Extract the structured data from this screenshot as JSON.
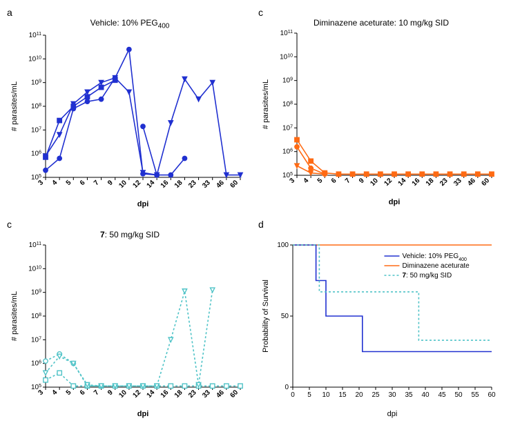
{
  "background_color": "#ffffff",
  "panels": {
    "a": {
      "label": "a",
      "title_prefix": "Vehicle: 10% PEG",
      "title_sub": "400",
      "type": "line",
      "color": "#2030d0",
      "fill_markers": true,
      "dash": "none",
      "y_mode": "log",
      "y_label": "# parasites/mL",
      "x_label": "dpi",
      "x_ticks": [
        "3",
        "4",
        "5",
        "6",
        "7",
        "9",
        "10",
        "12",
        "14",
        "16",
        "18",
        "23",
        "33",
        "46",
        "60"
      ],
      "x_bold": true,
      "y_ticks_exp": [
        5,
        6,
        7,
        8,
        9,
        10,
        11
      ],
      "h_ref_exp": 5,
      "series": [
        {
          "marker": "circle",
          "points": [
            [
              0,
              5.3
            ],
            [
              1,
              5.8
            ],
            [
              2,
              7.9
            ],
            [
              3,
              8.2
            ],
            [
              4,
              8.3
            ],
            [
              5,
              9.2
            ],
            [
              6,
              10.4
            ],
            [
              7,
              5.15
            ],
            [
              8,
              5.1
            ]
          ]
        },
        {
          "marker": "square",
          "points": [
            [
              0,
              5.85
            ],
            [
              1,
              7.4
            ],
            [
              2,
              8.0
            ],
            [
              3,
              8.4
            ],
            [
              4,
              8.8
            ],
            [
              5,
              9.1
            ]
          ]
        },
        {
          "marker": "triangle-down",
          "points": [
            [
              0,
              5.9
            ],
            [
              1,
              6.8
            ],
            [
              2,
              8.1
            ],
            [
              3,
              8.6
            ],
            [
              4,
              9.0
            ],
            [
              5,
              9.2
            ],
            [
              6,
              8.6
            ],
            [
              7,
              5.2
            ],
            [
              8,
              5.1
            ],
            [
              9,
              7.3
            ],
            [
              10,
              9.15
            ],
            [
              11,
              8.3
            ],
            [
              12,
              9.0
            ],
            [
              13,
              5.1
            ],
            [
              14,
              5.1
            ]
          ]
        },
        {
          "marker": "circle",
          "points": [
            [
              7,
              7.15
            ],
            [
              8,
              5.1
            ],
            [
              9,
              5.1
            ],
            [
              10,
              5.8
            ]
          ]
        }
      ],
      "title_fontsize": 12
    },
    "b": {
      "label": "c",
      "title": "Diminazene aceturate: 10 mg/kg SID",
      "type": "line",
      "color": "#ff6a13",
      "fill_markers": true,
      "dash": "none",
      "y_mode": "log",
      "y_label": "# parasites/mL",
      "x_label": "dpi",
      "x_ticks": [
        "3",
        "4",
        "5",
        "6",
        "7",
        "9",
        "10",
        "12",
        "14",
        "16",
        "18",
        "23",
        "33",
        "46",
        "60"
      ],
      "x_bold": true,
      "y_ticks_exp": [
        5,
        6,
        7,
        8,
        9,
        10,
        11
      ],
      "h_ref_exp": 5,
      "series": [
        {
          "marker": "square",
          "points": [
            [
              0,
              6.5
            ],
            [
              1,
              5.6
            ],
            [
              2,
              5.1
            ],
            [
              3,
              5.05
            ],
            [
              4,
              5.05
            ],
            [
              5,
              5.05
            ],
            [
              6,
              5.05
            ],
            [
              7,
              5.05
            ],
            [
              8,
              5.05
            ],
            [
              9,
              5.05
            ],
            [
              10,
              5.05
            ],
            [
              11,
              5.05
            ],
            [
              12,
              5.05
            ],
            [
              13,
              5.05
            ],
            [
              14,
              5.05
            ]
          ]
        },
        {
          "marker": "circle",
          "points": [
            [
              0,
              6.2
            ],
            [
              1,
              5.3
            ],
            [
              2,
              5.05
            ]
          ]
        },
        {
          "marker": "triangle-down",
          "points": [
            [
              0,
              5.4
            ],
            [
              1,
              5.1
            ],
            [
              2,
              5.05
            ]
          ]
        }
      ],
      "title_fontsize": 12
    },
    "c": {
      "label": "c",
      "title_bold_prefix": "7",
      "title_rest": ": 50 mg/kg SID",
      "type": "line",
      "color": "#4fc3c7",
      "fill_markers": false,
      "dash": "3 3",
      "y_mode": "log",
      "y_label": "# parasites/mL",
      "x_label": "dpi",
      "x_ticks": [
        "3",
        "4",
        "5",
        "6",
        "7",
        "9",
        "10",
        "12",
        "14",
        "16",
        "18",
        "23",
        "33",
        "46",
        "60"
      ],
      "x_bold": true,
      "y_ticks_exp": [
        5,
        6,
        7,
        8,
        9,
        10,
        11
      ],
      "h_ref_exp": 5,
      "series": [
        {
          "marker": "square",
          "points": [
            [
              0,
              5.3
            ],
            [
              1,
              5.6
            ],
            [
              2,
              5.05
            ],
            [
              3,
              5.05
            ],
            [
              4,
              5.05
            ],
            [
              5,
              5.05
            ],
            [
              6,
              5.05
            ],
            [
              7,
              5.05
            ],
            [
              8,
              5.05
            ],
            [
              9,
              5.05
            ],
            [
              10,
              5.05
            ],
            [
              11,
              5.05
            ],
            [
              12,
              5.05
            ],
            [
              13,
              5.05
            ],
            [
              14,
              5.05
            ]
          ]
        },
        {
          "marker": "circle",
          "points": [
            [
              0,
              6.1
            ],
            [
              1,
              6.4
            ],
            [
              2,
              6.0
            ],
            [
              3,
              5.05
            ],
            [
              4,
              5.05
            ]
          ]
        },
        {
          "marker": "triangle-down",
          "points": [
            [
              0,
              5.6
            ],
            [
              1,
              6.3
            ],
            [
              2,
              6.0
            ],
            [
              3,
              5.1
            ],
            [
              4,
              5.05
            ],
            [
              5,
              5.05
            ],
            [
              6,
              5.05
            ],
            [
              7,
              5.05
            ],
            [
              8,
              5.05
            ],
            [
              9,
              7.0
            ],
            [
              10,
              9.05
            ],
            [
              11,
              5.1
            ],
            [
              12,
              9.1
            ]
          ]
        }
      ],
      "title_fontsize": 12
    },
    "d": {
      "label": "d",
      "type": "survival",
      "y_label": "Probability of Survival",
      "x_label": "dpi",
      "x_ticks": [
        0,
        5,
        10,
        15,
        20,
        25,
        30,
        35,
        40,
        45,
        50,
        55,
        60
      ],
      "y_ticks": [
        0,
        50,
        100
      ],
      "x_bold": false,
      "title_fontsize": 12,
      "legend": [
        {
          "label_prefix": "Vehicle: 10% PEG",
          "label_sub": "400",
          "color": "#2030d0",
          "dash": "none"
        },
        {
          "label": "Diminazene aceturate",
          "color": "#ff6a13",
          "dash": "none"
        },
        {
          "label_bold_prefix": "7",
          "label_rest": ": 50 mg/kg SID",
          "color": "#4fc3c7",
          "dash": "3 3"
        }
      ],
      "series": [
        {
          "color": "#ff6a13",
          "dash": "none",
          "steps": [
            [
              0,
              100
            ],
            [
              60,
              100
            ]
          ]
        },
        {
          "color": "#2030d0",
          "dash": "none",
          "steps": [
            [
              0,
              100
            ],
            [
              7,
              100
            ],
            [
              7,
              75
            ],
            [
              10,
              75
            ],
            [
              10,
              50
            ],
            [
              21,
              50
            ],
            [
              21,
              25
            ],
            [
              60,
              25
            ]
          ]
        },
        {
          "color": "#4fc3c7",
          "dash": "3 3",
          "steps": [
            [
              0,
              100
            ],
            [
              8,
              100
            ],
            [
              8,
              67
            ],
            [
              38,
              67
            ],
            [
              38,
              33
            ],
            [
              60,
              33
            ]
          ]
        }
      ]
    }
  }
}
